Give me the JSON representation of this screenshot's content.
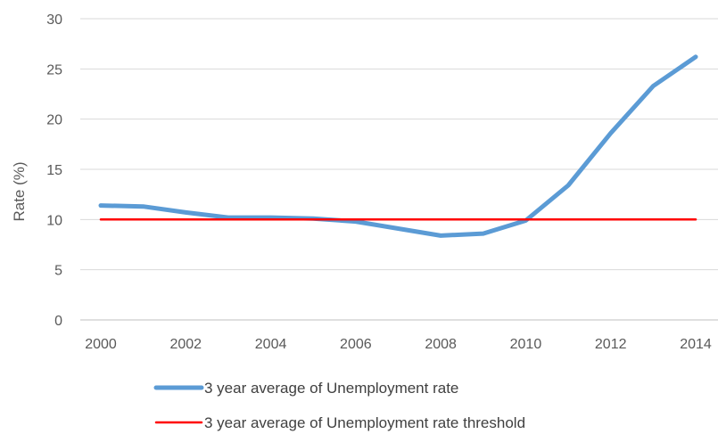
{
  "chart_data": {
    "type": "line",
    "title": "",
    "xlabel": "",
    "ylabel": "Rate (%)",
    "xlim": [
      2000,
      2014
    ],
    "ylim": [
      0,
      30
    ],
    "x_ticks": [
      2000,
      2002,
      2004,
      2006,
      2008,
      2010,
      2012,
      2014
    ],
    "y_ticks": [
      0,
      5,
      10,
      15,
      20,
      25,
      30
    ],
    "grid": "horizontal",
    "legend_position": "bottom",
    "x": [
      2000,
      2001,
      2002,
      2003,
      2004,
      2005,
      2006,
      2007,
      2008,
      2009,
      2010,
      2011,
      2012,
      2013,
      2014
    ],
    "series": [
      {
        "name": "3 year average of Unemployment rate",
        "color": "#5b9bd5",
        "values": [
          11.4,
          11.3,
          10.7,
          10.2,
          10.2,
          10.1,
          9.8,
          9.1,
          8.4,
          8.6,
          9.9,
          13.4,
          18.6,
          23.3,
          26.2
        ]
      },
      {
        "name": "3 year average of Unemployment rate threshold",
        "color": "#ff0000",
        "values": [
          10,
          10,
          10,
          10,
          10,
          10,
          10,
          10,
          10,
          10,
          10,
          10,
          10,
          10,
          10
        ]
      }
    ]
  }
}
